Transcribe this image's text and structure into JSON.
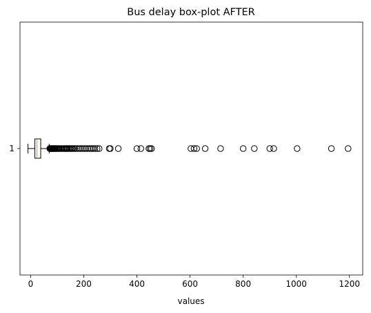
{
  "chart_data": {
    "type": "boxplot",
    "orientation": "horizontal",
    "title": "Bus delay box-plot AFTER",
    "xlabel": "values",
    "ylabel": "",
    "xlim": [
      -40,
      1250
    ],
    "xticks": [
      0,
      200,
      400,
      600,
      800,
      1000,
      1200
    ],
    "yticks": [
      "1"
    ],
    "grid": false,
    "colors": {
      "box": "#000000",
      "median": "#ff7f0e",
      "whisker": "#000000",
      "flier": "#000000"
    },
    "series": [
      {
        "label": "1",
        "whisker_low": -10,
        "q1": 16,
        "median": 24,
        "q3": 38,
        "whisker_high": 70,
        "fliers": [
          72,
          74,
          76,
          78,
          80,
          82,
          84,
          86,
          88,
          90,
          92,
          95,
          98,
          100,
          103,
          106,
          110,
          115,
          120,
          125,
          128,
          132,
          135,
          138,
          142,
          146,
          150,
          154,
          158,
          163,
          168,
          175,
          182,
          188,
          195,
          202,
          208,
          215,
          222,
          228,
          235,
          242,
          250,
          258,
          296,
          300,
          330,
          400,
          415,
          445,
          450,
          455,
          603,
          615,
          625,
          657,
          715,
          800,
          842,
          900,
          915,
          1003,
          1132,
          1195
        ]
      }
    ]
  }
}
